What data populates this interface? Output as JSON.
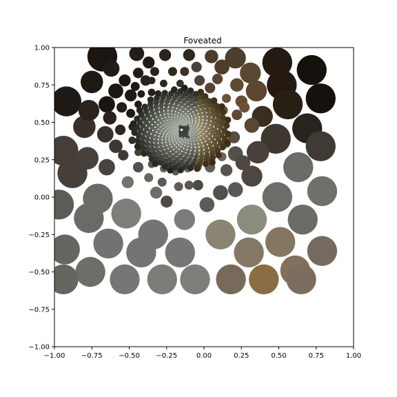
{
  "chart_data": {
    "type": "scatter",
    "title": "Foveated",
    "xlabel": "",
    "ylabel": "",
    "xlim": [
      -1.0,
      1.0
    ],
    "ylim": [
      -1.0,
      1.0
    ],
    "xticks": [
      -1.0,
      -0.75,
      -0.5,
      -0.25,
      0.0,
      0.25,
      0.5,
      0.75,
      1.0
    ],
    "yticks": [
      -1.0,
      -0.75,
      -0.5,
      -0.25,
      0.0,
      0.25,
      0.5,
      0.75,
      1.0
    ],
    "xtick_labels": [
      "−1.00",
      "−0.75",
      "−0.50",
      "−0.25",
      "0.00",
      "0.25",
      "0.50",
      "0.75",
      "1.00"
    ],
    "ytick_labels": [
      "−1.00",
      "−0.75",
      "−0.50",
      "−0.25",
      "0.00",
      "0.25",
      "0.50",
      "0.75",
      "1.00"
    ],
    "grid": false,
    "fovea_center": [
      -0.15,
      0.45
    ],
    "points": [
      {
        "x": 0.72,
        "y": 0.85,
        "r": 0.1,
        "color": "#15110d"
      },
      {
        "x": 0.78,
        "y": 0.66,
        "r": 0.1,
        "color": "#15110d"
      },
      {
        "x": 0.49,
        "y": 0.9,
        "r": 0.1,
        "color": "#241a12"
      },
      {
        "x": 0.52,
        "y": 0.75,
        "r": 0.1,
        "color": "#241a12"
      },
      {
        "x": 0.56,
        "y": 0.62,
        "r": 0.1,
        "color": "#2a1f14"
      },
      {
        "x": 0.69,
        "y": 0.46,
        "r": 0.1,
        "color": "#29231d"
      },
      {
        "x": 0.78,
        "y": 0.34,
        "r": 0.1,
        "color": "#403a35"
      },
      {
        "x": 0.48,
        "y": 0.39,
        "r": 0.1,
        "color": "#3e3730"
      },
      {
        "x": 0.63,
        "y": 0.2,
        "r": 0.1,
        "color": "#6a6c67"
      },
      {
        "x": 0.79,
        "y": 0.04,
        "r": 0.1,
        "color": "#6f706b"
      },
      {
        "x": 0.49,
        "y": 0.0,
        "r": 0.1,
        "color": "#6c6d69"
      },
      {
        "x": 0.66,
        "y": -0.15,
        "r": 0.1,
        "color": "#6b6c68"
      },
      {
        "x": 0.32,
        "y": -0.15,
        "r": 0.1,
        "color": "#8c8c7d"
      },
      {
        "x": 0.51,
        "y": -0.3,
        "r": 0.1,
        "color": "#857662"
      },
      {
        "x": 0.79,
        "y": -0.36,
        "r": 0.1,
        "color": "#756a5d"
      },
      {
        "x": 0.3,
        "y": -0.37,
        "r": 0.1,
        "color": "#837864"
      },
      {
        "x": 0.61,
        "y": -0.49,
        "r": 0.1,
        "color": "#82705b"
      },
      {
        "x": 0.65,
        "y": -0.55,
        "r": 0.1,
        "color": "#7c6e5e"
      },
      {
        "x": 0.4,
        "y": -0.55,
        "r": 0.1,
        "color": "#8b6c45"
      },
      {
        "x": 0.18,
        "y": -0.55,
        "r": 0.1,
        "color": "#786a5a"
      },
      {
        "x": 0.11,
        "y": -0.25,
        "r": 0.1,
        "color": "#8a8472"
      },
      {
        "x": -0.06,
        "y": -0.55,
        "r": 0.1,
        "color": "#7d7d79"
      },
      {
        "x": -0.16,
        "y": -0.37,
        "r": 0.1,
        "color": "#767774"
      },
      {
        "x": -0.28,
        "y": -0.55,
        "r": 0.1,
        "color": "#7b7d79"
      },
      {
        "x": -0.34,
        "y": -0.25,
        "r": 0.1,
        "color": "#747572"
      },
      {
        "x": -0.42,
        "y": -0.37,
        "r": 0.1,
        "color": "#747572"
      },
      {
        "x": -0.53,
        "y": -0.55,
        "r": 0.1,
        "color": "#767775"
      },
      {
        "x": -0.52,
        "y": -0.11,
        "r": 0.1,
        "color": "#7e7f7b"
      },
      {
        "x": -0.64,
        "y": -0.31,
        "r": 0.1,
        "color": "#727370"
      },
      {
        "x": -0.76,
        "y": -0.5,
        "r": 0.1,
        "color": "#6d6e6a"
      },
      {
        "x": -0.77,
        "y": -0.14,
        "r": 0.1,
        "color": "#6a6b67"
      },
      {
        "x": -0.71,
        "y": -0.01,
        "r": 0.1,
        "color": "#6a6a66"
      },
      {
        "x": -0.93,
        "y": -0.35,
        "r": 0.1,
        "color": "#676561"
      },
      {
        "x": -0.94,
        "y": -0.55,
        "r": 0.1,
        "color": "#656660"
      },
      {
        "x": -0.97,
        "y": -0.05,
        "r": 0.1,
        "color": "#5c5b58"
      },
      {
        "x": -0.88,
        "y": 0.16,
        "r": 0.1,
        "color": "#463f3a"
      },
      {
        "x": -0.94,
        "y": 0.31,
        "r": 0.1,
        "color": "#453e39"
      },
      {
        "x": -0.92,
        "y": 0.64,
        "r": 0.1,
        "color": "#1f1915"
      },
      {
        "x": -0.68,
        "y": 0.94,
        "r": 0.1,
        "color": "#1c1612"
      },
      {
        "x": -0.75,
        "y": 0.77,
        "r": 0.075,
        "color": "#1f1914"
      },
      {
        "x": -0.62,
        "y": 0.86,
        "r": 0.055,
        "color": "#231b15"
      },
      {
        "x": -0.45,
        "y": 0.96,
        "r": 0.05,
        "color": "#241c16"
      },
      {
        "x": -0.8,
        "y": 0.47,
        "r": 0.075,
        "color": "#38312b"
      },
      {
        "x": -0.78,
        "y": 0.26,
        "r": 0.075,
        "color": "#48413b"
      },
      {
        "x": -0.77,
        "y": 0.58,
        "r": 0.07,
        "color": "#2a221c"
      },
      {
        "x": -0.65,
        "y": 0.62,
        "r": 0.055,
        "color": "#1a140f"
      },
      {
        "x": -0.66,
        "y": 0.42,
        "r": 0.055,
        "color": "#3a332d"
      },
      {
        "x": -0.65,
        "y": 0.2,
        "r": 0.055,
        "color": "#4b443e"
      },
      {
        "x": -0.59,
        "y": 0.71,
        "r": 0.05,
        "color": "#1d1712"
      },
      {
        "x": -0.37,
        "y": 0.9,
        "r": 0.04,
        "color": "#221a14"
      },
      {
        "x": -0.26,
        "y": 0.95,
        "r": 0.04,
        "color": "#2c231c"
      },
      {
        "x": -0.1,
        "y": 0.95,
        "r": 0.04,
        "color": "#2e2820"
      },
      {
        "x": 0.05,
        "y": 0.94,
        "r": 0.045,
        "color": "#4a3b2b"
      },
      {
        "x": 0.21,
        "y": 0.93,
        "r": 0.07,
        "color": "#4e3e2c"
      },
      {
        "x": 0.31,
        "y": 0.83,
        "r": 0.07,
        "color": "#5a4731"
      },
      {
        "x": 0.35,
        "y": 0.71,
        "r": 0.07,
        "color": "#5c4630"
      },
      {
        "x": 0.39,
        "y": 0.54,
        "r": 0.07,
        "color": "#3a2d22"
      },
      {
        "x": 0.32,
        "y": 0.48,
        "r": 0.05,
        "color": "#5a4733"
      },
      {
        "x": 0.36,
        "y": 0.3,
        "r": 0.075,
        "color": "#48403a"
      },
      {
        "x": 0.32,
        "y": 0.14,
        "r": 0.07,
        "color": "#4d4641"
      },
      {
        "x": 0.21,
        "y": 0.29,
        "r": 0.05,
        "color": "#54504b"
      },
      {
        "x": 0.26,
        "y": 0.23,
        "r": 0.05,
        "color": "#4d4843"
      },
      {
        "x": 0.21,
        "y": 0.05,
        "r": 0.05,
        "color": "#5b5854"
      },
      {
        "x": 0.11,
        "y": 0.03,
        "r": 0.05,
        "color": "#54514c"
      },
      {
        "x": 0.02,
        "y": -0.05,
        "r": 0.05,
        "color": "#5e5b57"
      },
      {
        "x": -0.13,
        "y": -0.15,
        "r": 0.07,
        "color": "#7b7c79"
      },
      {
        "x": -0.25,
        "y": -0.03,
        "r": 0.04,
        "color": "#4f4945"
      },
      {
        "x": -0.32,
        "y": 0.03,
        "r": 0.04,
        "color": "#6f6c67"
      },
      {
        "x": -0.51,
        "y": 0.1,
        "r": 0.04,
        "color": "#77716c"
      },
      {
        "x": -0.59,
        "y": 0.34,
        "r": 0.045,
        "color": "#3e3731"
      },
      {
        "x": -0.63,
        "y": 0.53,
        "r": 0.045,
        "color": "#2a221c"
      },
      {
        "x": -0.53,
        "y": 0.78,
        "r": 0.04,
        "color": "#1e1813"
      },
      {
        "x": -0.49,
        "y": 0.68,
        "r": 0.04,
        "color": "#211a14"
      },
      {
        "x": -0.44,
        "y": 0.83,
        "r": 0.035,
        "color": "#231b15"
      },
      {
        "x": -0.39,
        "y": 0.78,
        "r": 0.035,
        "color": "#2a211a"
      },
      {
        "x": -0.33,
        "y": 0.84,
        "r": 0.03,
        "color": "#2b231c"
      },
      {
        "x": -0.21,
        "y": 0.84,
        "r": 0.03,
        "color": "#30271f"
      },
      {
        "x": -0.13,
        "y": 0.84,
        "r": 0.03,
        "color": "#3d3226"
      },
      {
        "x": -0.05,
        "y": 0.87,
        "r": 0.035,
        "color": "#4a4036"
      },
      {
        "x": 0.12,
        "y": 0.87,
        "r": 0.05,
        "color": "#513d27"
      },
      {
        "x": 0.22,
        "y": 0.75,
        "r": 0.045,
        "color": "#5f4a33"
      },
      {
        "x": 0.25,
        "y": 0.64,
        "r": 0.04,
        "color": "#644d33"
      },
      {
        "x": 0.27,
        "y": 0.6,
        "r": 0.035,
        "color": "#6a5238"
      },
      {
        "x": 0.22,
        "y": 0.55,
        "r": 0.035,
        "color": "#5d4834"
      },
      {
        "x": 0.2,
        "y": 0.4,
        "r": 0.04,
        "color": "#5a4c3f"
      },
      {
        "x": 0.15,
        "y": 0.18,
        "r": 0.04,
        "color": "#57534e"
      },
      {
        "x": 0.04,
        "y": 0.2,
        "r": 0.035,
        "color": "#625e59"
      },
      {
        "x": -0.04,
        "y": 0.08,
        "r": 0.035,
        "color": "#4e4944"
      },
      {
        "x": -0.1,
        "y": 0.08,
        "r": 0.03,
        "color": "#5c5751"
      },
      {
        "x": -0.17,
        "y": 0.07,
        "r": 0.03,
        "color": "#605b55"
      },
      {
        "x": -0.28,
        "y": 0.1,
        "r": 0.03,
        "color": "#5d5852"
      },
      {
        "x": -0.37,
        "y": 0.13,
        "r": 0.03,
        "color": "#6a6560"
      },
      {
        "x": -0.44,
        "y": 0.2,
        "r": 0.035,
        "color": "#55504b"
      },
      {
        "x": -0.54,
        "y": 0.28,
        "r": 0.035,
        "color": "#403a35"
      },
      {
        "x": -0.56,
        "y": 0.45,
        "r": 0.035,
        "color": "#2e2620"
      },
      {
        "x": -0.55,
        "y": 0.6,
        "r": 0.035,
        "color": "#241c16"
      },
      {
        "x": -0.49,
        "y": 0.56,
        "r": 0.03,
        "color": "#201913"
      },
      {
        "x": -0.46,
        "y": 0.74,
        "r": 0.03,
        "color": "#1f1813"
      },
      {
        "x": -0.35,
        "y": 0.78,
        "r": 0.025,
        "color": "#2d251d"
      },
      {
        "x": -0.03,
        "y": 0.78,
        "r": 0.035,
        "color": "#4f4438"
      },
      {
        "x": 0.04,
        "y": 0.73,
        "r": 0.035,
        "color": "#574532"
      },
      {
        "x": 0.09,
        "y": 0.79,
        "r": 0.035,
        "color": "#5a4530"
      },
      {
        "x": 0.15,
        "y": 0.66,
        "r": 0.03,
        "color": "#6b5236"
      },
      {
        "x": 0.13,
        "y": 0.58,
        "r": 0.03,
        "color": "#6d563c"
      },
      {
        "x": 0.1,
        "y": 0.5,
        "r": 0.03,
        "color": "#7a6752"
      },
      {
        "x": 0.15,
        "y": 0.36,
        "r": 0.03,
        "color": "#5e544a"
      },
      {
        "x": 0.12,
        "y": 0.27,
        "r": 0.03,
        "color": "#6c655e"
      },
      {
        "x": 0.07,
        "y": 0.31,
        "r": 0.025,
        "color": "#756f68"
      },
      {
        "x": 0.02,
        "y": 0.26,
        "r": 0.025,
        "color": "#7e7a74"
      },
      {
        "x": -0.04,
        "y": 0.2,
        "r": 0.025,
        "color": "#787470"
      },
      {
        "x": -0.11,
        "y": 0.19,
        "r": 0.025,
        "color": "#6b6864"
      },
      {
        "x": -0.19,
        "y": 0.17,
        "r": 0.025,
        "color": "#5d5954"
      },
      {
        "x": -0.27,
        "y": 0.19,
        "r": 0.025,
        "color": "#63605b"
      },
      {
        "x": -0.35,
        "y": 0.22,
        "r": 0.025,
        "color": "#5a554f"
      },
      {
        "x": -0.44,
        "y": 0.3,
        "r": 0.025,
        "color": "#46403a"
      },
      {
        "x": -0.48,
        "y": 0.38,
        "r": 0.025,
        "color": "#332b25"
      },
      {
        "x": -0.48,
        "y": 0.47,
        "r": 0.025,
        "color": "#2b231d"
      },
      {
        "x": -0.44,
        "y": 0.62,
        "r": 0.025,
        "color": "#221b15"
      },
      {
        "x": -0.42,
        "y": 0.69,
        "r": 0.025,
        "color": "#231b15"
      },
      {
        "x": -0.35,
        "y": 0.7,
        "r": 0.025,
        "color": "#281f18"
      },
      {
        "x": -0.27,
        "y": 0.76,
        "r": 0.025,
        "color": "#2e251d"
      },
      {
        "x": -0.16,
        "y": 0.76,
        "r": 0.025,
        "color": "#3b3127"
      },
      {
        "x": 0.05,
        "y": 0.63,
        "r": 0.025,
        "color": "#5f4d3b"
      },
      {
        "x": 0.07,
        "y": 0.57,
        "r": 0.025,
        "color": "#6b5a47"
      },
      {
        "x": 0.06,
        "y": 0.44,
        "r": 0.025,
        "color": "#706a62"
      },
      {
        "x": 0.09,
        "y": 0.41,
        "r": 0.025,
        "color": "#8a7450"
      }
    ]
  }
}
